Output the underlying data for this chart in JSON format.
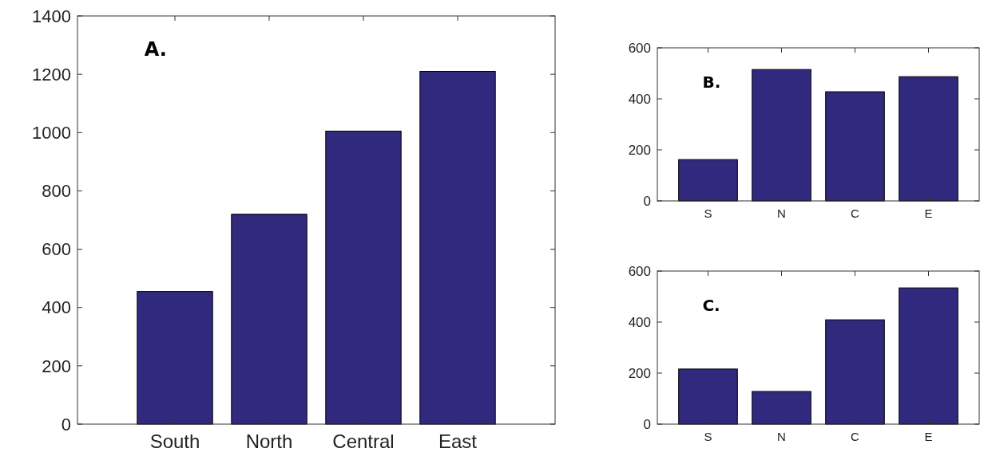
{
  "chart_data": [
    {
      "type": "bar",
      "categories": [
        "South",
        "North",
        "Central",
        "East"
      ],
      "values": [
        455,
        720,
        1005,
        1210
      ],
      "color": "#31297e",
      "ylim": [
        0,
        1400
      ],
      "yticks": [
        0,
        200,
        400,
        600,
        800,
        1000,
        1200,
        1400
      ],
      "grid": false,
      "annotations": [
        "A."
      ]
    },
    {
      "type": "bar",
      "categories": [
        "S",
        "N",
        "C",
        "E"
      ],
      "values": [
        162,
        515,
        428,
        487
      ],
      "color": "#31297e",
      "ylim": [
        0,
        600
      ],
      "yticks": [
        0,
        200,
        400,
        600
      ],
      "grid": false,
      "annotations": [
        "B."
      ]
    },
    {
      "type": "bar",
      "categories": [
        "S",
        "N",
        "C",
        "E"
      ],
      "values": [
        216,
        128,
        409,
        534
      ],
      "color": "#31297e",
      "ylim": [
        0,
        600
      ],
      "yticks": [
        0,
        200,
        400,
        600
      ],
      "grid": false,
      "annotations": [
        "C."
      ]
    }
  ]
}
